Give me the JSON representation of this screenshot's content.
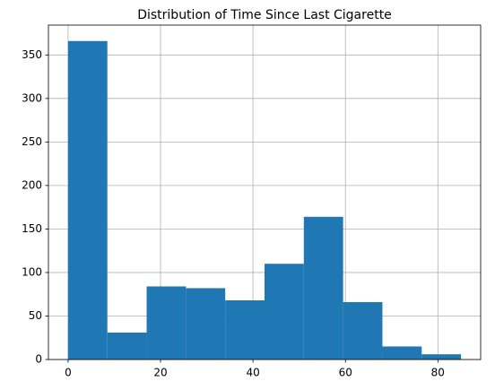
{
  "chart_data": {
    "type": "histogram",
    "title": "Distribution of Time Since Last Cigarette",
    "bins": [
      0,
      8.5,
      17,
      25.5,
      34,
      42.5,
      51,
      59.5,
      68,
      76.5,
      85
    ],
    "values": [
      366,
      31,
      84,
      82,
      68,
      110,
      164,
      66,
      15,
      6
    ],
    "color": "#1f77b4",
    "xlim": [
      -4.25,
      89.25
    ],
    "xticks": [
      0,
      20,
      40,
      60,
      80
    ],
    "ylim": [
      0,
      384.3
    ],
    "yticks": [
      0,
      50,
      100,
      150,
      200,
      250,
      300,
      350
    ],
    "grid": true
  }
}
